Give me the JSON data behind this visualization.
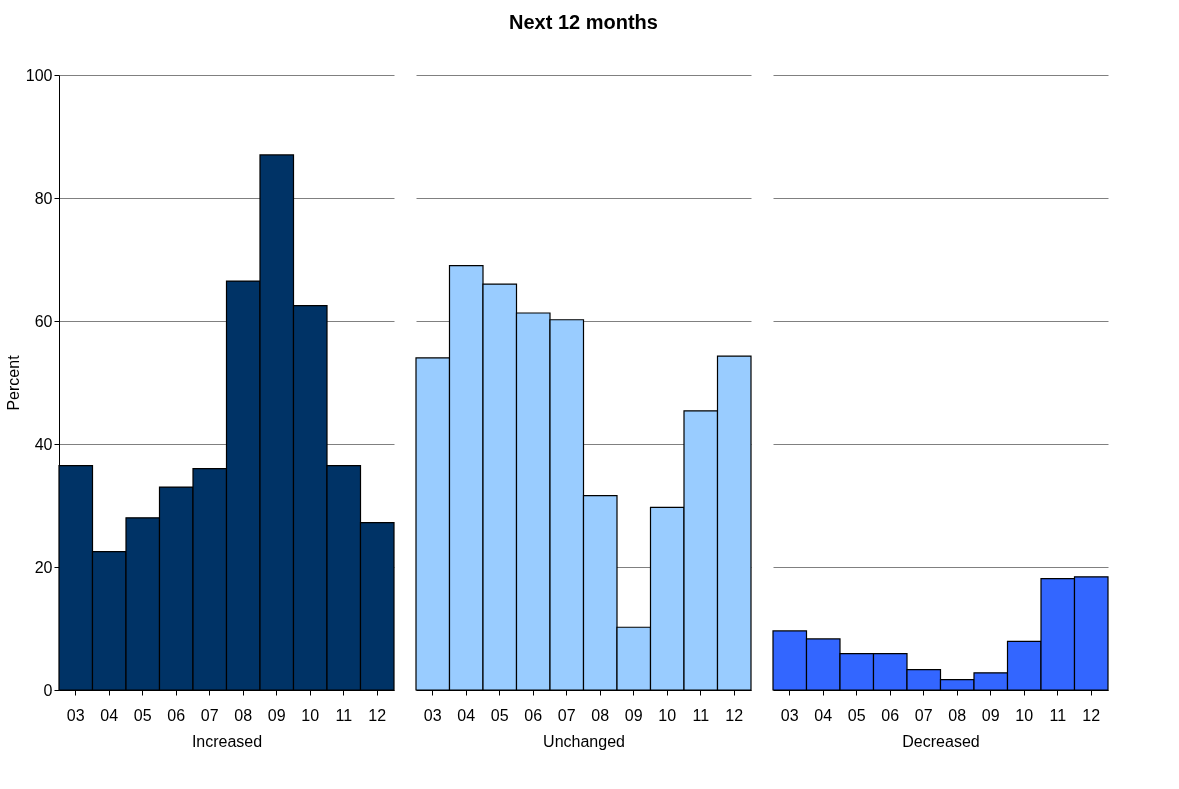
{
  "chart_data": [
    {
      "type": "bar",
      "xlabel": "Increased",
      "ylabel": "Percent",
      "categories": [
        "03",
        "04",
        "05",
        "06",
        "07",
        "08",
        "09",
        "10",
        "11",
        "12"
      ],
      "series": [
        {
          "color": "#003366",
          "values": [
            36.5,
            22.5,
            28,
            33,
            36,
            66.5,
            87,
            62.5,
            36.5,
            27.2
          ]
        }
      ],
      "ylim": [
        0,
        100
      ],
      "yticks": [
        0,
        20,
        40,
        60,
        80,
        100
      ],
      "grid": "y"
    },
    {
      "type": "bar",
      "title": "Next 12 months",
      "xlabel": "Unchanged",
      "categories": [
        "03",
        "04",
        "05",
        "06",
        "07",
        "08",
        "09",
        "10",
        "11",
        "12"
      ],
      "series": [
        {
          "color": "#99ccff",
          "values": [
            54,
            69,
            66,
            61.3,
            60.2,
            31.6,
            10.2,
            29.7,
            45.4,
            54.3
          ]
        }
      ],
      "ylim": [
        0,
        100
      ],
      "yticks": [
        0,
        20,
        40,
        60,
        80,
        100
      ],
      "grid": "y",
      "tick_labels": "x"
    },
    {
      "type": "bar",
      "xlabel": "Decreased",
      "categories": [
        "03",
        "04",
        "05",
        "06",
        "07",
        "08",
        "09",
        "10",
        "11",
        "12"
      ],
      "series": [
        {
          "color": "#3366ff",
          "values": [
            9.6,
            8.3,
            5.9,
            5.9,
            3.3,
            1.7,
            2.8,
            7.9,
            18.1,
            18.4
          ]
        }
      ],
      "ylim": [
        0,
        100
      ],
      "yticks": [
        0,
        20,
        40,
        60,
        80,
        100
      ],
      "grid": "y",
      "tick_labels": "x"
    }
  ]
}
